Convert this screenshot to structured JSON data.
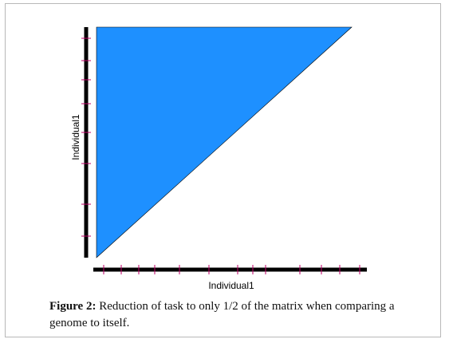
{
  "figure": {
    "y_axis_label": "Individual1",
    "x_axis_label": "Individual1",
    "triangle_color": "#1E90FF",
    "axis_color": "#000000",
    "tick_color": "#C0006A",
    "caption": {
      "label": "Figure 2:",
      "text": "Reduction of task to only 1/2 of the matrix when comparing a genome to itself."
    }
  }
}
